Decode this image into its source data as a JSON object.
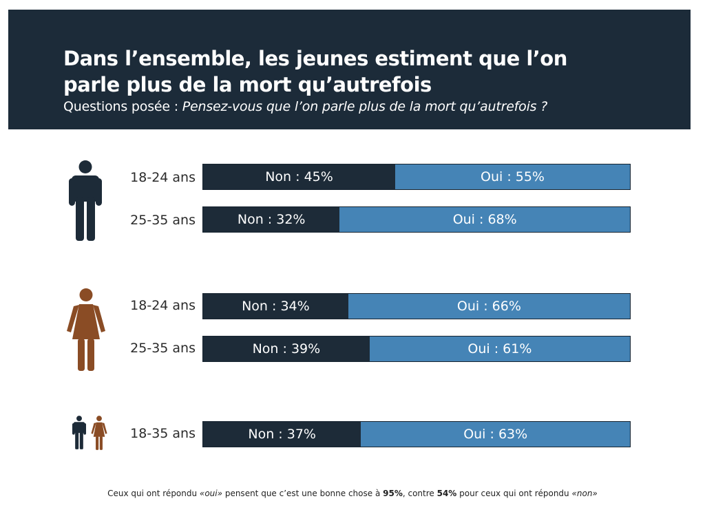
{
  "header": {
    "title_line1": "Dans l’ensemble, les jeunes estiment que l’on",
    "title_line2": "parle plus de la mort qu’autrefois",
    "subtitle_prefix": "Questions posée : ",
    "subtitle_question": "Pensez-vous que l’on parle plus de la mort qu’autrefois ?"
  },
  "colors": {
    "header_bg": "#1c2b39",
    "non": "#1d2b38",
    "oui": "#4584b6",
    "man": "#1d2b38",
    "woman": "#8a4c25"
  },
  "icons": {
    "man": "man-icon",
    "woman": "woman-icon"
  },
  "chart_data": {
    "type": "bar",
    "orientation": "horizontal",
    "stacked": true,
    "percent": true,
    "categories": [
      "18-24 ans",
      "25-35 ans",
      "18-24 ans",
      "25-35 ans",
      "18-35 ans"
    ],
    "groups": [
      "man",
      "man",
      "woman",
      "woman",
      "all"
    ],
    "series": [
      {
        "name": "Non",
        "values": [
          45,
          32,
          34,
          39,
          37
        ]
      },
      {
        "name": "Oui",
        "values": [
          55,
          68,
          66,
          61,
          63
        ]
      }
    ],
    "segment_labels": [
      [
        "Non : 45%",
        "Oui : 55%"
      ],
      [
        "Non : 32%",
        "Oui : 68%"
      ],
      [
        "Non : 34%",
        "Oui : 66%"
      ],
      [
        "Non : 39%",
        "Oui : 61%"
      ],
      [
        "Non : 37%",
        "Oui : 63%"
      ]
    ]
  },
  "footnote": {
    "part1": "Ceux qui ont répondu ",
    "part2": "«oui»",
    "part3": " pensent que c’est une bonne chose à ",
    "part4": "95%",
    "part5": ", contre ",
    "part6": "54%",
    "part7": " pour ceux qui ont répondu ",
    "part8": "«non»"
  }
}
